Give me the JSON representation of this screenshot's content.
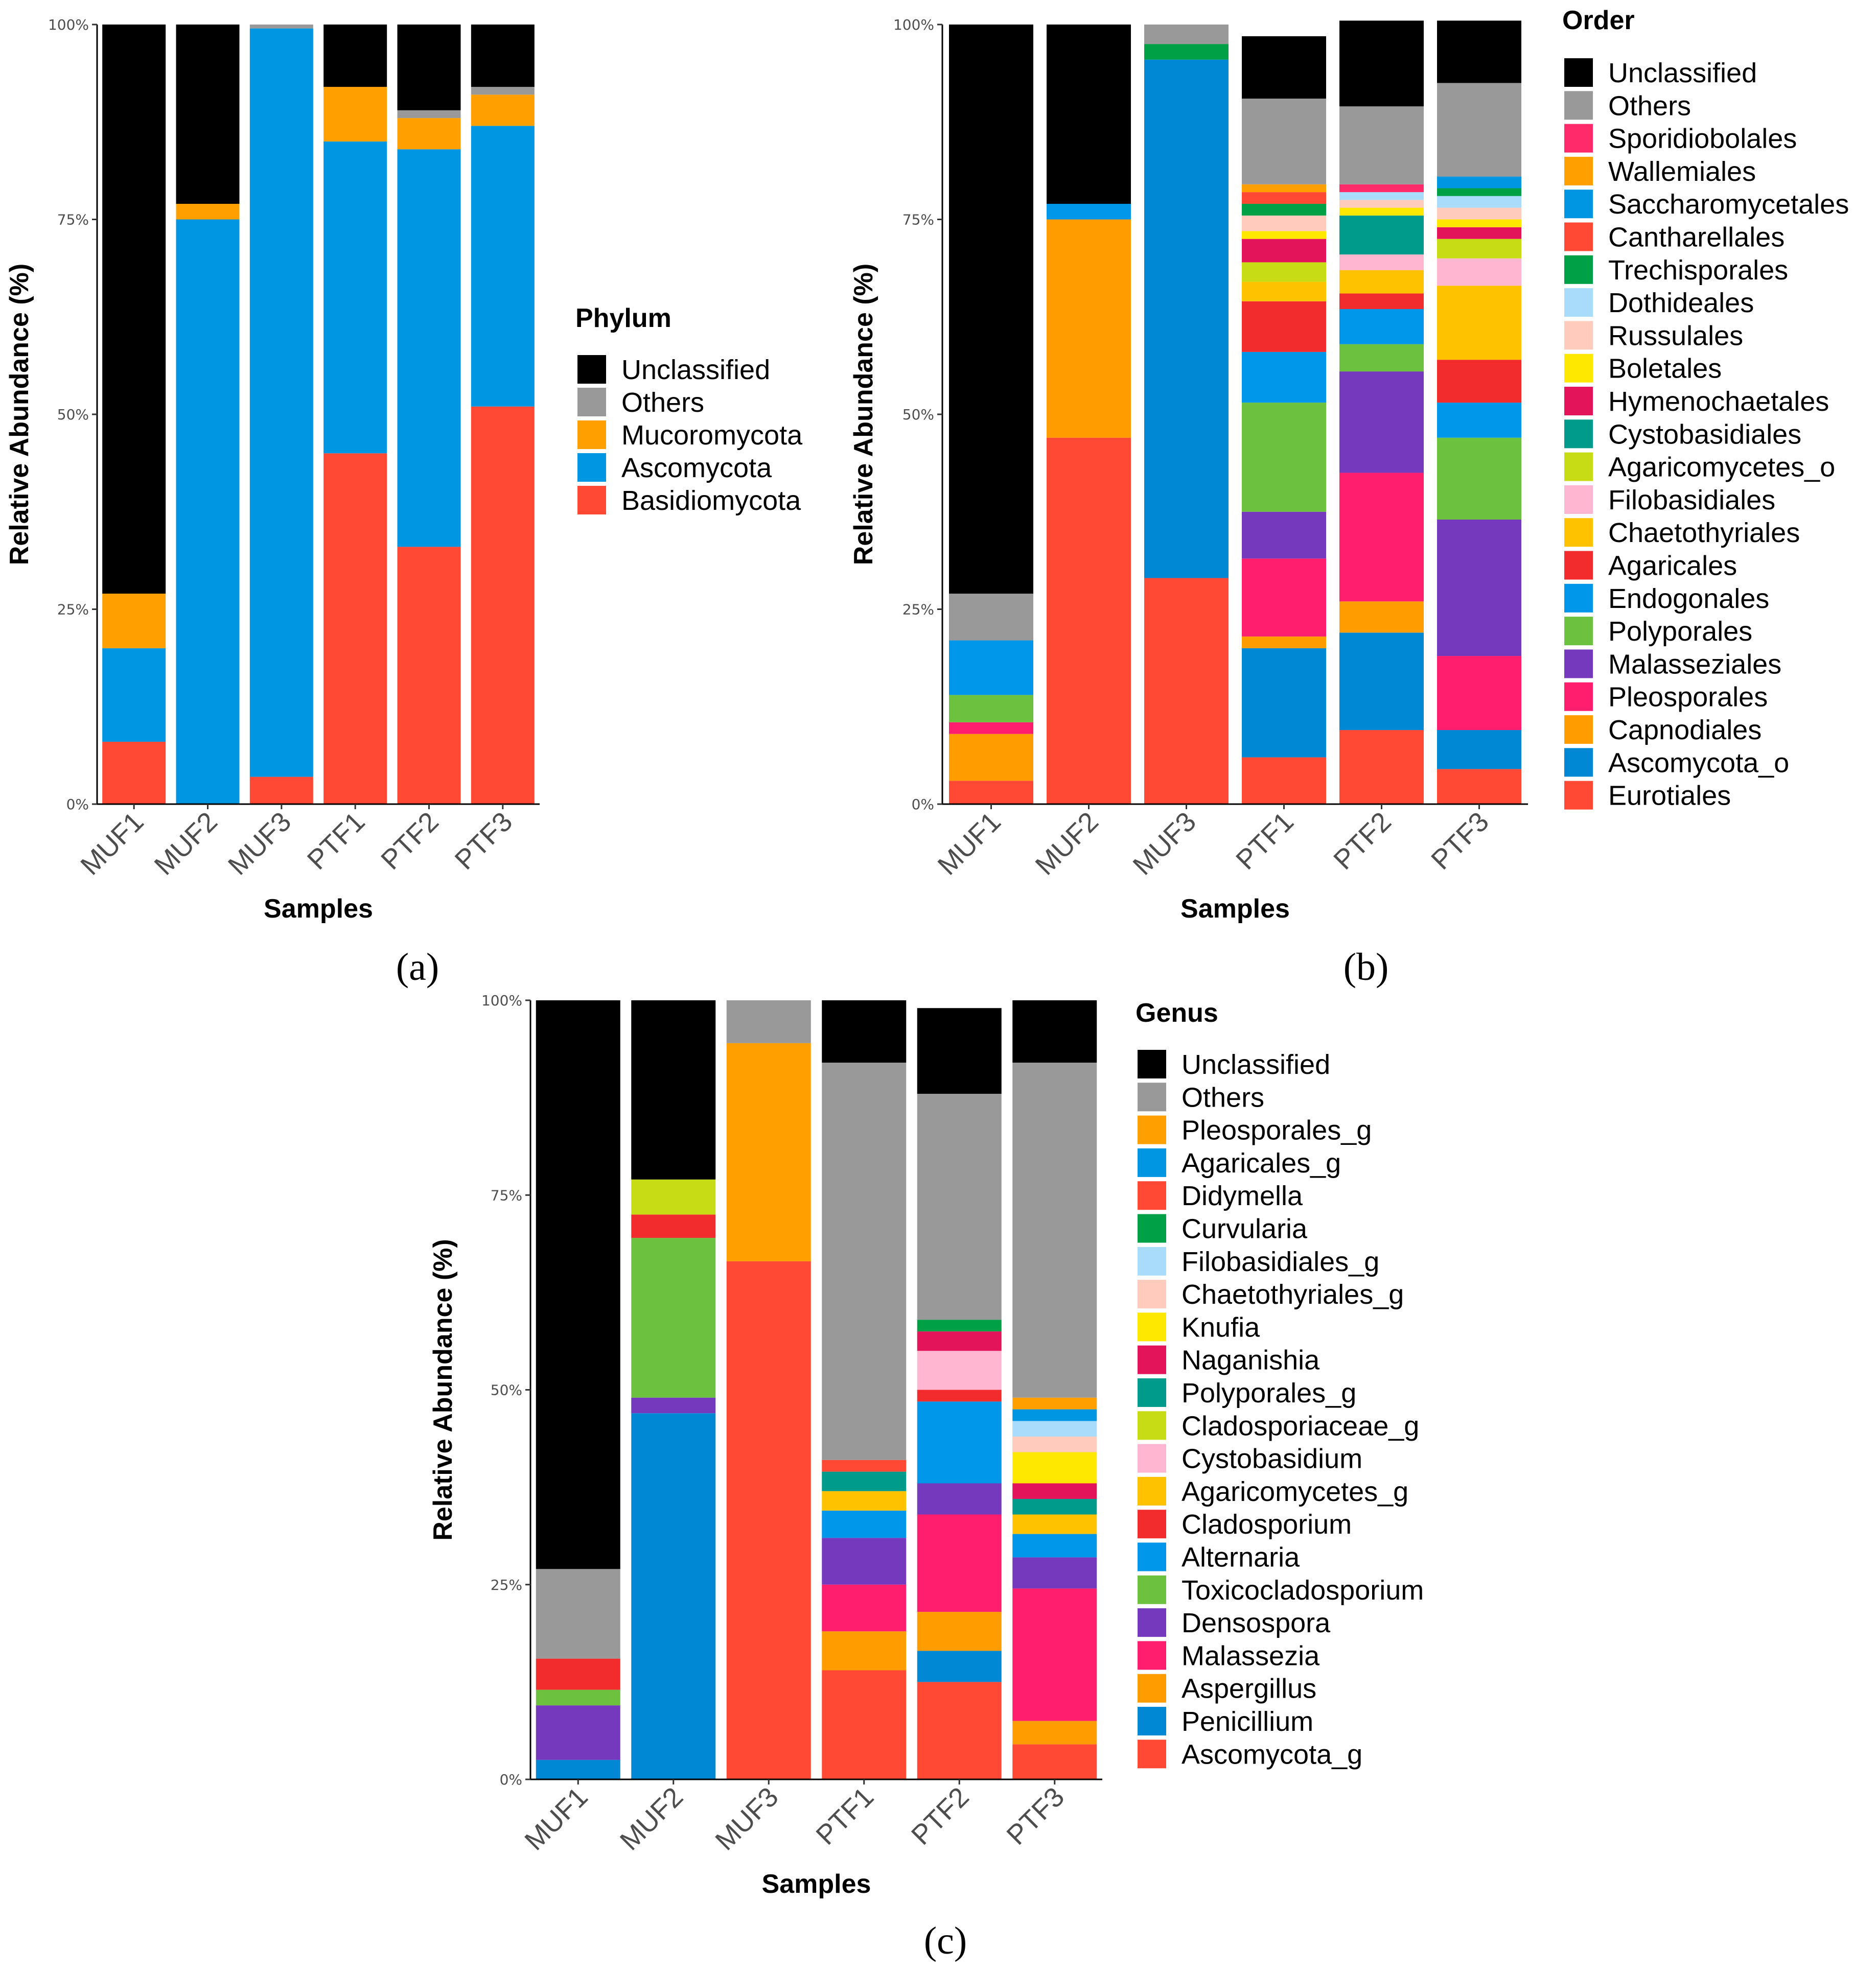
{
  "chart_data": [
    {
      "id": "a",
      "type": "stacked-bar",
      "caption": "(a)",
      "xlabel": "Samples",
      "ylabel": "Relative Abundance (%)",
      "ylim": [
        0,
        100
      ],
      "yticks": [
        "0%",
        "25%",
        "50%",
        "75%",
        "100%"
      ],
      "categories": [
        "MUF1",
        "MUF2",
        "MUF3",
        "PTF1",
        "PTF2",
        "PTF3"
      ],
      "legend_title": "Phylum",
      "series": [
        {
          "name": "Basidiomycota",
          "color": "#ff4935",
          "values": [
            8,
            0,
            3.5,
            45,
            33,
            51
          ]
        },
        {
          "name": "Ascomycota",
          "color": "#0096e1",
          "values": [
            12,
            75,
            96,
            40,
            51,
            36
          ]
        },
        {
          "name": "Mucoromycota",
          "color": "#ffa000",
          "values": [
            7,
            2,
            0,
            7,
            4,
            4
          ]
        },
        {
          "name": "Others",
          "color": "#999999",
          "values": [
            0,
            0,
            0.5,
            0,
            1,
            1
          ]
        },
        {
          "name": "Unclassified",
          "color": "#000000",
          "values": [
            73,
            23,
            0,
            8,
            11,
            8
          ]
        }
      ]
    },
    {
      "id": "b",
      "type": "stacked-bar",
      "caption": "(b)",
      "xlabel": "Samples",
      "ylabel": "Relative Abundance (%)",
      "ylim": [
        0,
        100
      ],
      "yticks": [
        "0%",
        "25%",
        "50%",
        "75%",
        "100%"
      ],
      "categories": [
        "MUF1",
        "MUF2",
        "MUF3",
        "PTF1",
        "PTF2",
        "PTF3"
      ],
      "legend_title": "Order",
      "series": [
        {
          "name": "Eurotiales",
          "color": "#ff4935",
          "values": [
            3,
            47,
            29,
            6,
            9.5,
            4.5
          ]
        },
        {
          "name": "Ascomycota_o",
          "color": "#0088d5",
          "values": [
            0,
            0,
            66.5,
            14,
            12.5,
            5
          ]
        },
        {
          "name": "Capnodiales",
          "color": "#ff9d00",
          "values": [
            6,
            28,
            0,
            1.5,
            4,
            0
          ]
        },
        {
          "name": "Pleosporales",
          "color": "#ff1e6e",
          "values": [
            1.5,
            0,
            0,
            10,
            16.5,
            9.5
          ]
        },
        {
          "name": "Malasseziales",
          "color": "#7439bc",
          "values": [
            0,
            0,
            0,
            6,
            13,
            17.5
          ]
        },
        {
          "name": "Polyporales",
          "color": "#6cc13e",
          "values": [
            3.5,
            0,
            0,
            14,
            3.5,
            10.5
          ]
        },
        {
          "name": "Endogonales",
          "color": "#0096ea",
          "values": [
            7,
            2,
            0,
            6.5,
            4.5,
            4.5
          ]
        },
        {
          "name": "Agaricales",
          "color": "#f22c2c",
          "values": [
            0,
            0,
            0,
            6.5,
            2,
            5.5
          ]
        },
        {
          "name": "Chaetothyriales",
          "color": "#ffc200",
          "values": [
            0,
            0,
            0,
            2.5,
            3,
            9.5
          ]
        },
        {
          "name": "Filobasidiales",
          "color": "#ffb6d0",
          "values": [
            0,
            0,
            0,
            0,
            2,
            3.5
          ]
        },
        {
          "name": "Agaricomycetes_o",
          "color": "#c8dc16",
          "values": [
            0,
            0,
            0,
            2.5,
            0,
            2.5
          ]
        },
        {
          "name": "Cystobasidiales",
          "color": "#009b8a",
          "values": [
            0,
            0,
            0,
            0,
            5,
            0
          ]
        },
        {
          "name": "Hymenochaetales",
          "color": "#e3145a",
          "values": [
            0,
            0,
            0,
            3,
            0,
            1.5
          ]
        },
        {
          "name": "Boletales",
          "color": "#ffe800",
          "values": [
            0,
            0,
            0,
            1,
            1,
            1
          ]
        },
        {
          "name": "Russulales",
          "color": "#ffcbbc",
          "values": [
            0,
            0,
            0,
            2,
            1,
            1.5
          ]
        },
        {
          "name": "Dothideales",
          "color": "#a9dcfa",
          "values": [
            0,
            0,
            0,
            0,
            1,
            1.5
          ]
        },
        {
          "name": "Trechisporales",
          "color": "#00a046",
          "values": [
            0,
            0,
            2,
            1.5,
            0,
            1
          ]
        },
        {
          "name": "Cantharellales",
          "color": "#ff4935",
          "values": [
            0,
            0,
            0,
            1.5,
            0,
            0
          ]
        },
        {
          "name": "Saccharomycetales",
          "color": "#0096e1",
          "values": [
            0,
            0,
            0,
            0,
            0,
            1.5
          ]
        },
        {
          "name": "Wallemiales",
          "color": "#ffa000",
          "values": [
            0,
            0,
            0,
            1,
            0,
            0
          ]
        },
        {
          "name": "Sporidiobolales",
          "color": "#ff2a6a",
          "values": [
            0,
            0,
            0,
            0,
            1,
            0
          ]
        },
        {
          "name": "Others",
          "color": "#999999",
          "values": [
            6,
            0,
            2.5,
            11,
            10,
            12
          ]
        },
        {
          "name": "Unclassified",
          "color": "#000000",
          "values": [
            73,
            23,
            0,
            8,
            11,
            8
          ]
        }
      ]
    },
    {
      "id": "c",
      "type": "stacked-bar",
      "caption": "(c)",
      "xlabel": "Samples",
      "ylabel": "Relative Abundance (%)",
      "ylim": [
        0,
        100
      ],
      "yticks": [
        "0%",
        "25%",
        "50%",
        "75%",
        "100%"
      ],
      "categories": [
        "MUF1",
        "MUF2",
        "MUF3",
        "PTF1",
        "PTF2",
        "PTF3"
      ],
      "legend_title": "Genus",
      "series": [
        {
          "name": "Ascomycota_g",
          "color": "#ff4935",
          "values": [
            0,
            0,
            66.5,
            14,
            12.5,
            4.5
          ]
        },
        {
          "name": "Penicillium",
          "color": "#0088d5",
          "values": [
            2.5,
            47,
            0,
            0,
            4,
            0
          ]
        },
        {
          "name": "Aspergillus",
          "color": "#ff9d00",
          "values": [
            0,
            0,
            0,
            5,
            5,
            3
          ]
        },
        {
          "name": "Malassezia",
          "color": "#ff1e6e",
          "values": [
            0,
            0,
            0,
            6,
            12.5,
            17
          ]
        },
        {
          "name": "Densospora",
          "color": "#7439bc",
          "values": [
            7,
            2,
            0,
            6,
            4,
            4
          ]
        },
        {
          "name": "Toxicocladosporium",
          "color": "#6cc13e",
          "values": [
            2,
            20.5,
            0,
            0,
            0,
            0
          ]
        },
        {
          "name": "Alternaria",
          "color": "#0096ea",
          "values": [
            0,
            0,
            0,
            3.5,
            10.5,
            3
          ]
        },
        {
          "name": "Cladosporium",
          "color": "#f22c2c",
          "values": [
            4,
            3,
            0,
            0,
            1.5,
            0
          ]
        },
        {
          "name": "Agaricomycetes_g",
          "color": "#ffc200",
          "values": [
            0,
            0,
            0,
            2.5,
            0,
            2.5
          ]
        },
        {
          "name": "Cystobasidium",
          "color": "#ffb6d0",
          "values": [
            0,
            0,
            0,
            0,
            5,
            0
          ]
        },
        {
          "name": "Cladosporiaceae_g",
          "color": "#c8dc16",
          "values": [
            0,
            4.5,
            0,
            0,
            0,
            0
          ]
        },
        {
          "name": "Polyporales_g",
          "color": "#009b8a",
          "values": [
            0,
            0,
            0,
            2.5,
            0,
            2
          ]
        },
        {
          "name": "Naganishia",
          "color": "#e3145a",
          "values": [
            0,
            0,
            0,
            0,
            2.5,
            2
          ]
        },
        {
          "name": "Knufia",
          "color": "#ffe800",
          "values": [
            0,
            0,
            0,
            0,
            0,
            4
          ]
        },
        {
          "name": "Chaetothyriales_g",
          "color": "#ffcbbc",
          "values": [
            0,
            0,
            0,
            0,
            0,
            2
          ]
        },
        {
          "name": "Filobasidiales_g",
          "color": "#a9dcfa",
          "values": [
            0,
            0,
            0,
            0,
            0,
            2
          ]
        },
        {
          "name": "Curvularia",
          "color": "#00a046",
          "values": [
            0,
            0,
            0,
            0,
            1.5,
            0
          ]
        },
        {
          "name": "Didymella",
          "color": "#ff4935",
          "values": [
            0,
            0,
            0,
            1.5,
            0,
            0
          ]
        },
        {
          "name": "Agaricales_g",
          "color": "#0096e1",
          "values": [
            0,
            0,
            0,
            0,
            0,
            1.5
          ]
        },
        {
          "name": "Pleosporales_g",
          "color": "#ffa000",
          "values": [
            0,
            0,
            28,
            0,
            0,
            1.5
          ]
        },
        {
          "name": "Others",
          "color": "#999999",
          "values": [
            11.5,
            0,
            5.5,
            51,
            29,
            43
          ]
        },
        {
          "name": "Unclassified",
          "color": "#000000",
          "values": [
            73,
            23,
            0,
            8,
            11,
            8
          ]
        }
      ]
    }
  ]
}
